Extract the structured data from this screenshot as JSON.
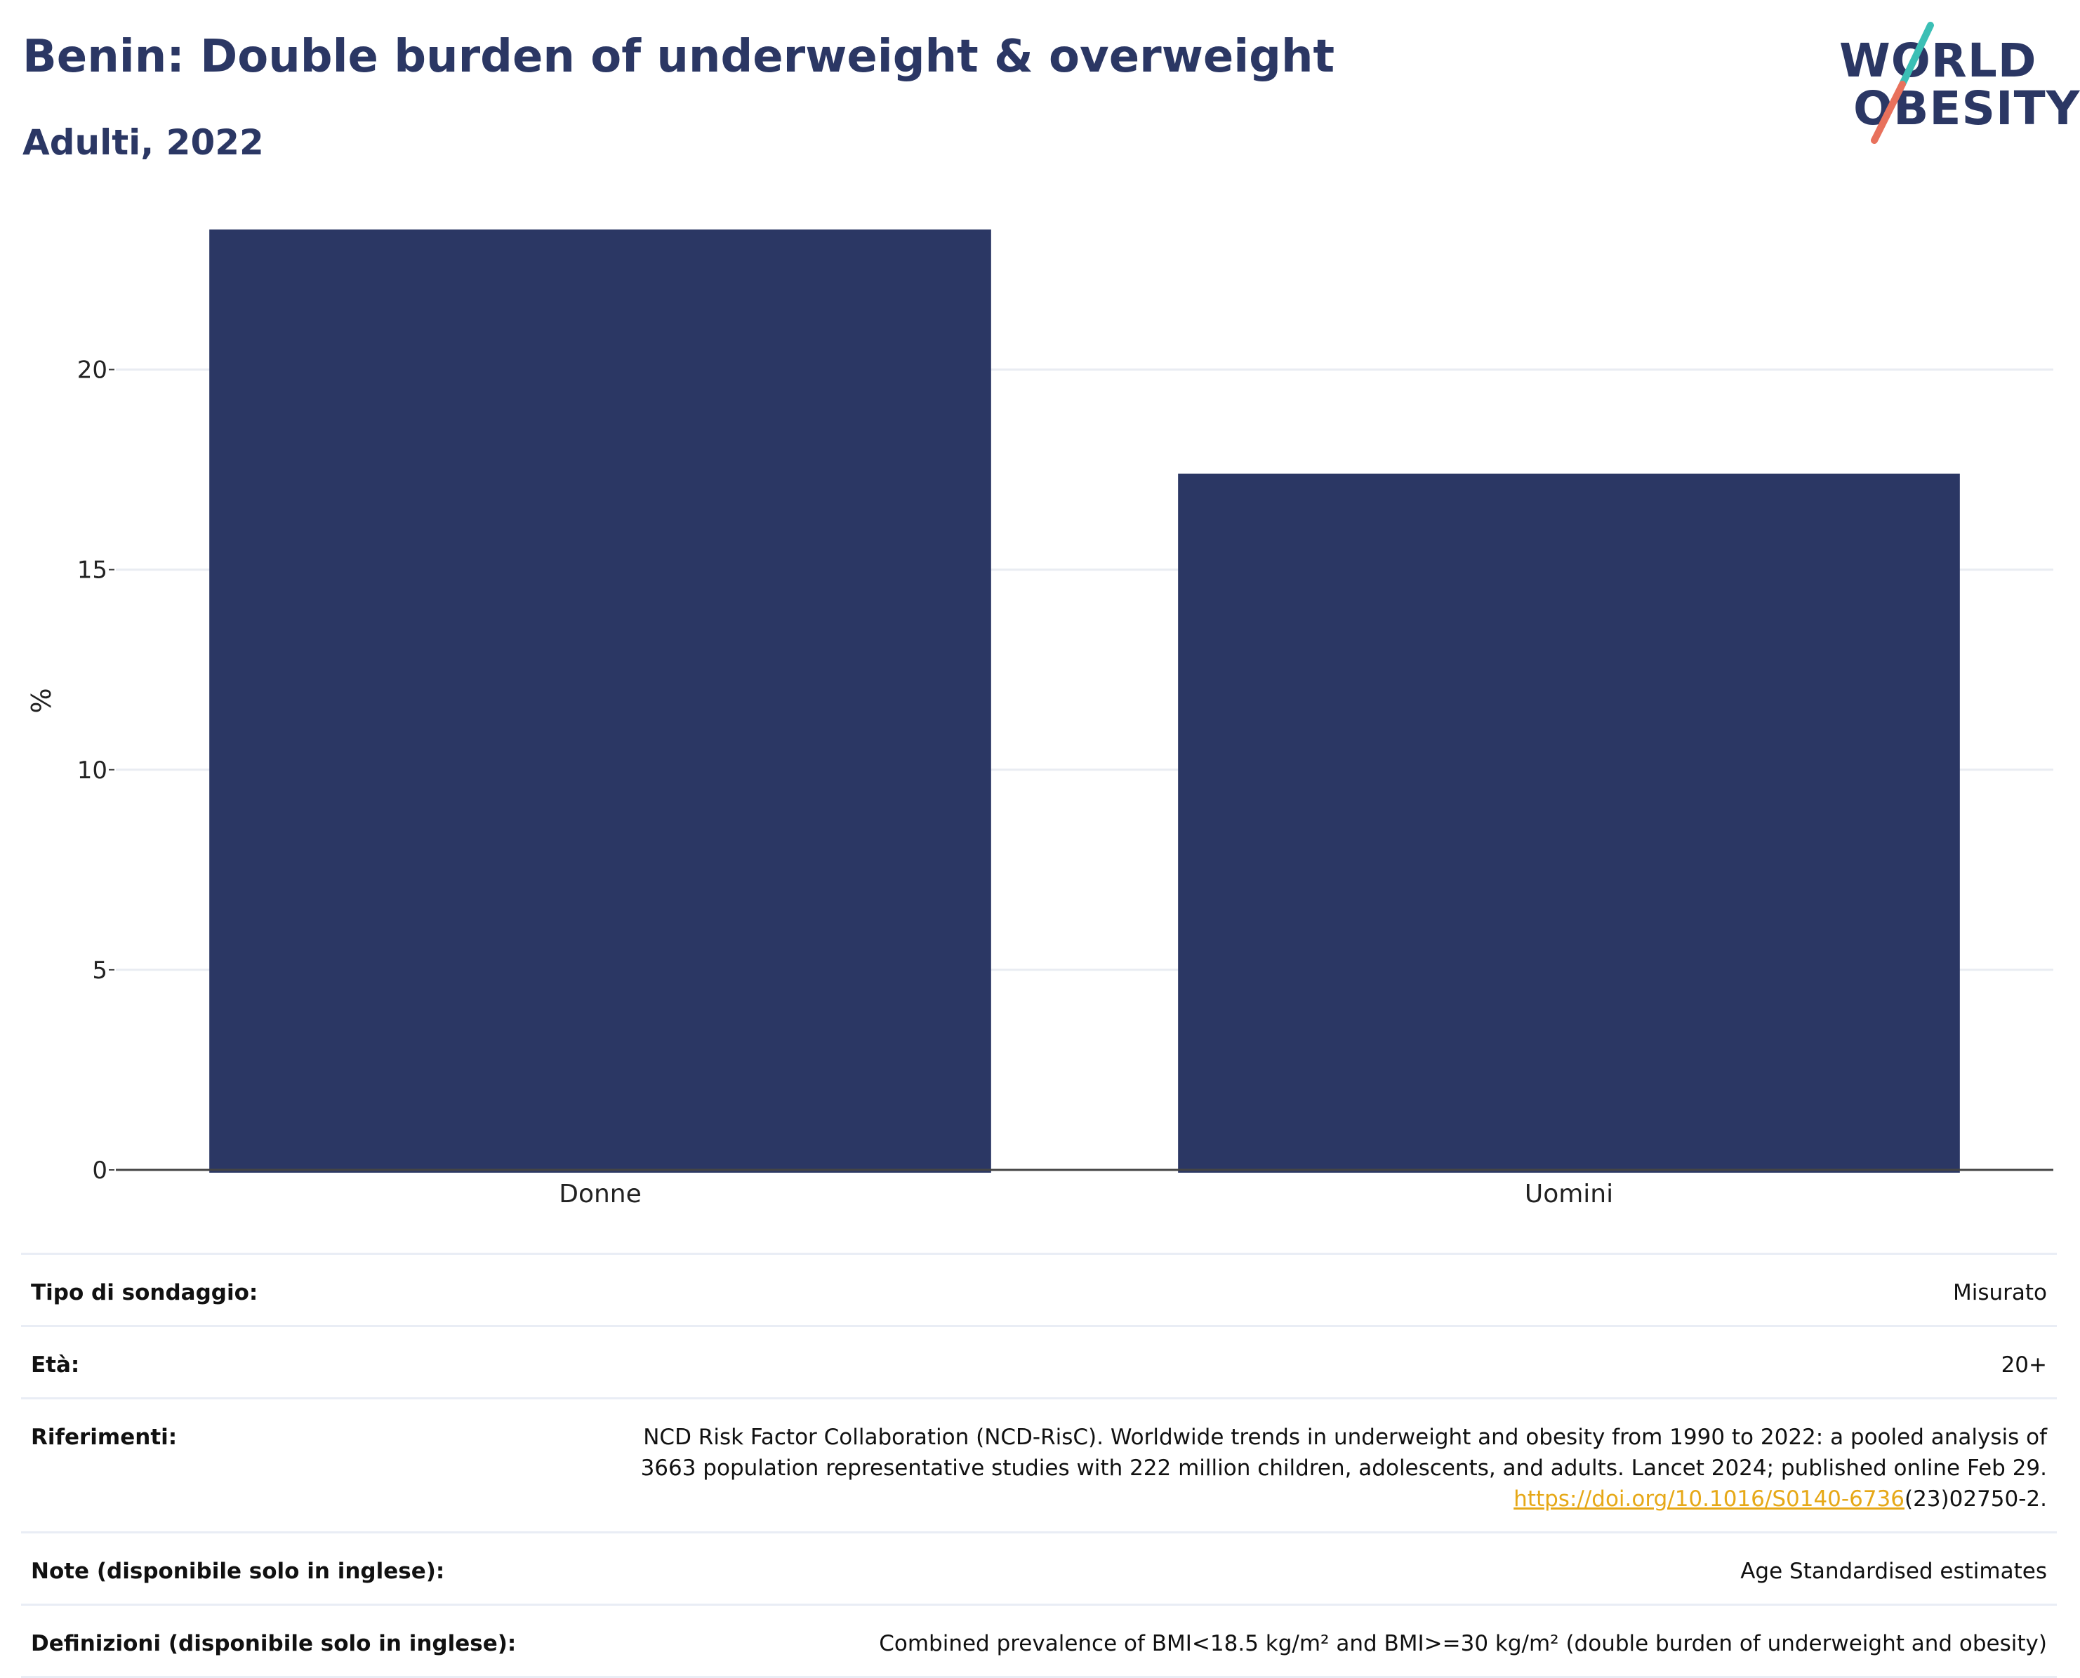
{
  "header": {
    "title": "Benin: Double burden of underweight & overweight",
    "subtitle": "Adulti, 2022"
  },
  "logo": {
    "line1": "WORLD",
    "line2": "OBESITY",
    "colors": {
      "text": "#2b3764",
      "slash_top": "#3bbfb5",
      "slash_bottom": "#e8715c"
    }
  },
  "chart_data": {
    "type": "bar",
    "categories": [
      "Donne",
      "Uomini"
    ],
    "values": [
      23.5,
      17.4
    ],
    "title": "",
    "xlabel": "",
    "ylabel": "%",
    "ylim": [
      0,
      24.5
    ],
    "yticks": [
      0,
      5,
      10,
      15,
      20
    ],
    "grid": true,
    "bar_color": "#2b3764"
  },
  "info_table": [
    {
      "label": "Tipo di sondaggio:",
      "value": "Misurato"
    },
    {
      "label": "Età:",
      "value": "20+"
    },
    {
      "label": "Riferimenti:",
      "value_line1": "NCD Risk Factor Collaboration (NCD-RisC). Worldwide trends in underweight and obesity from 1990 to 2022: a pooled analysis of",
      "value_line2": "3663 population representative studies with 222 million children, adolescents, and adults. Lancet 2024; published online Feb 29.",
      "link_text": "https://doi.org/10.1016/S0140-6736",
      "value_tail": "(23)02750-2."
    },
    {
      "label": "Note (disponibile solo in inglese):",
      "value": "Age Standardised estimates"
    },
    {
      "label": "Definizioni (disponibile solo in inglese):",
      "value": "Combined prevalence of BMI<18.5 kg/m² and BMI>=30 kg/m² (double burden of underweight and obesity)"
    }
  ]
}
